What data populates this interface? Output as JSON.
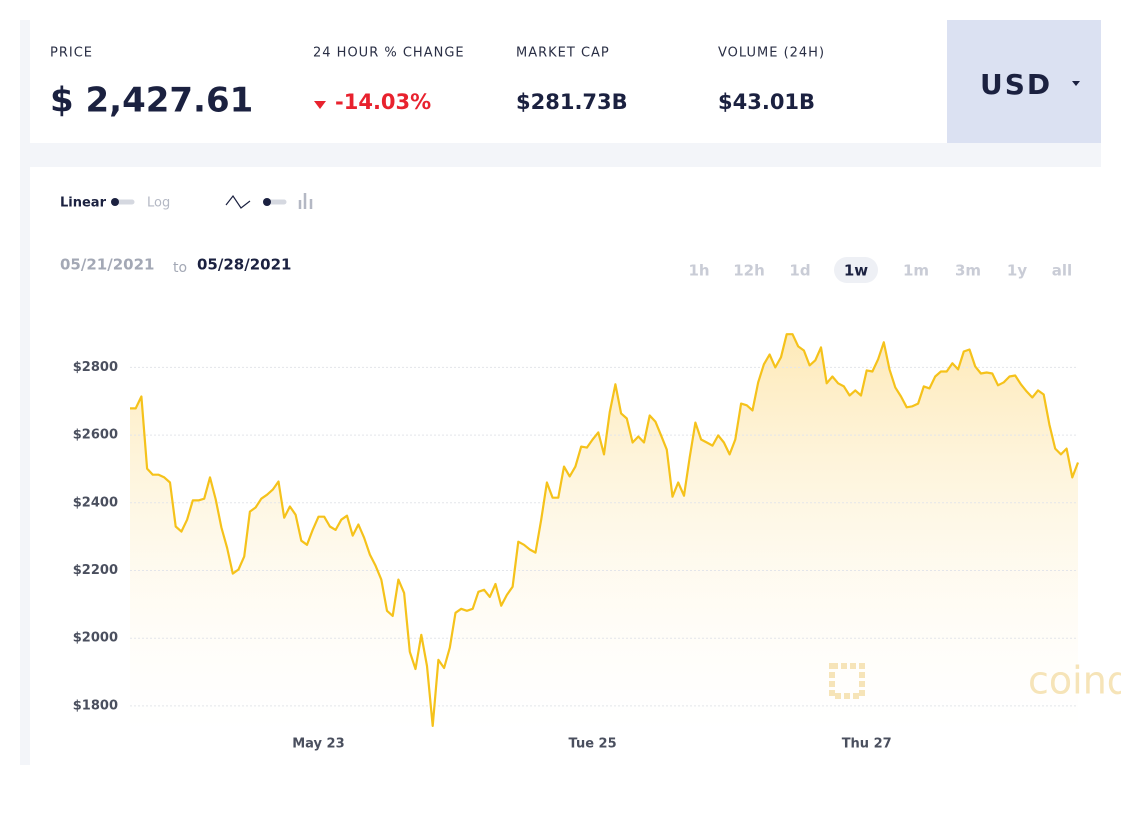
{
  "header": {
    "price": {
      "label": "PRICE",
      "value": "$ 2,427.61"
    },
    "change": {
      "label": "24 HOUR % CHANGE",
      "value": "-14.03%"
    },
    "market_cap": {
      "label": "MARKET CAP",
      "value": "$281.73B"
    },
    "volume": {
      "label": "VOLUME (24H)",
      "value": "$43.01B"
    },
    "currency": "USD"
  },
  "controls": {
    "scale": [
      "Linear",
      "Log"
    ],
    "date_from": "05/21/2021",
    "date_sep": "to",
    "date_to": "05/28/2021",
    "ranges": [
      "1h",
      "12h",
      "1d",
      "1w",
      "1m",
      "3m",
      "1y",
      "all"
    ],
    "active_range": 3,
    "watermark": "coindesk"
  },
  "chart_data": {
    "type": "area",
    "color": "#f5c21b",
    "grid": true,
    "ylim": [
      1720,
      2940
    ],
    "yticks": [
      {
        "value": 1800,
        "label": "$1800"
      },
      {
        "value": 2000,
        "label": "$2000"
      },
      {
        "value": 2200,
        "label": "$2200"
      },
      {
        "value": 2400,
        "label": "$2400"
      },
      {
        "value": 2600,
        "label": "$2600"
      },
      {
        "value": 2800,
        "label": "$2800"
      }
    ],
    "categories": [
      null,
      null,
      null,
      null,
      null,
      null,
      null,
      null,
      null,
      null,
      null,
      null,
      null,
      null,
      null,
      null,
      null,
      null,
      null,
      null,
      null,
      null,
      null,
      null,
      null,
      null,
      null,
      null,
      null,
      null,
      null,
      null,
      null,
      "May 23",
      null,
      null,
      null,
      null,
      null,
      null,
      null,
      null,
      null,
      null,
      null,
      null,
      null,
      null,
      null,
      null,
      null,
      null,
      null,
      null,
      null,
      null,
      null,
      null,
      null,
      null,
      null,
      null,
      null,
      null,
      null,
      null,
      null,
      null,
      null,
      null,
      null,
      null,
      null,
      null,
      null,
      null,
      null,
      null,
      null,
      null,
      null,
      "Tue 25",
      null,
      null,
      null,
      null,
      null,
      null,
      null,
      null,
      null,
      null,
      null,
      null,
      null,
      null,
      null,
      null,
      null,
      null,
      null,
      null,
      null,
      null,
      null,
      null,
      null,
      null,
      null,
      null,
      null,
      null,
      null,
      null,
      null,
      null,
      null,
      null,
      null,
      null,
      null,
      null,
      null,
      null,
      null,
      null,
      null,
      null,
      null,
      "Thu 27",
      null,
      null,
      null,
      null,
      null,
      null,
      null,
      null,
      null,
      null,
      null,
      null,
      null,
      null,
      null,
      null,
      null,
      null,
      null,
      null,
      null,
      null,
      null,
      null,
      null,
      null,
      null,
      null,
      null,
      null,
      null,
      null,
      null,
      null,
      null,
      null,
      null
    ],
    "values": [
      2679,
      2679,
      2714,
      2501,
      2483,
      2483,
      2475,
      2460,
      2330,
      2315,
      2350,
      2407,
      2407,
      2412,
      2475,
      2410,
      2327,
      2267,
      2191,
      2203,
      2241,
      2374,
      2386,
      2412,
      2424,
      2439,
      2463,
      2356,
      2389,
      2365,
      2288,
      2276,
      2320,
      2359,
      2359,
      2330,
      2320,
      2350,
      2362,
      2303,
      2336,
      2297,
      2247,
      2214,
      2173,
      2081,
      2066,
      2173,
      2134,
      1960,
      1909,
      2010,
      1918,
      1741,
      1936,
      1912,
      1972,
      2075,
      2087,
      2081,
      2087,
      2137,
      2143,
      2122,
      2160,
      2096,
      2128,
      2152,
      2285,
      2276,
      2262,
      2253,
      2350,
      2460,
      2415,
      2415,
      2507,
      2478,
      2507,
      2566,
      2563,
      2587,
      2608,
      2543,
      2667,
      2750,
      2664,
      2649,
      2578,
      2596,
      2578,
      2658,
      2640,
      2599,
      2557,
      2418,
      2460,
      2421,
      2534,
      2637,
      2587,
      2578,
      2569,
      2599,
      2578,
      2543,
      2587,
      2693,
      2688,
      2673,
      2756,
      2809,
      2838,
      2800,
      2830,
      2898,
      2898,
      2862,
      2850,
      2806,
      2821,
      2859,
      2753,
      2773,
      2753,
      2744,
      2717,
      2732,
      2717,
      2791,
      2788,
      2824,
      2874,
      2794,
      2741,
      2714,
      2682,
      2685,
      2693,
      2744,
      2738,
      2773,
      2788,
      2788,
      2812,
      2794,
      2847,
      2853,
      2803,
      2782,
      2785,
      2782,
      2747,
      2756,
      2773,
      2776,
      2750,
      2729,
      2711,
      2732,
      2720,
      2631,
      2560,
      2543,
      2560,
      2475,
      2519
    ]
  }
}
